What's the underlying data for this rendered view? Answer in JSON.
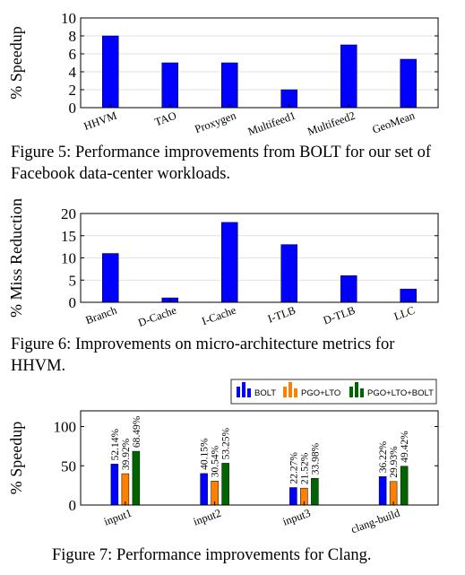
{
  "chart_data": [
    {
      "type": "bar",
      "ylabel": "% Speedup",
      "ylim": [
        0,
        10
      ],
      "yticks": [
        0,
        2,
        4,
        6,
        8,
        10
      ],
      "categories": [
        "HHVM",
        "TAO",
        "Proxygen",
        "Multifeed1",
        "Multifeed2",
        "GeoMean"
      ],
      "values": [
        8,
        5,
        5,
        2,
        7,
        5.4
      ],
      "color": "#0000ff",
      "grid": "horizontal",
      "caption": "Figure 5: Performance improvements from BOLT for our set of Facebook data-center workloads."
    },
    {
      "type": "bar",
      "ylabel": "% Miss Reduction",
      "ylim": [
        0,
        20
      ],
      "yticks": [
        0,
        5,
        10,
        15,
        20
      ],
      "categories": [
        "Branch",
        "D-Cache",
        "I-Cache",
        "I-TLB",
        "D-TLB",
        "LLC"
      ],
      "values": [
        11,
        1,
        18,
        13,
        6,
        3
      ],
      "color": "#0000ff",
      "grid": "horizontal",
      "caption": "Figure 6: Improvements on micro-architecture metrics for HHVM."
    },
    {
      "type": "bar",
      "ylabel": "% Speedup",
      "ylim": [
        0,
        120
      ],
      "yticks": [
        0,
        50,
        100
      ],
      "categories": [
        "input1",
        "input2",
        "input3",
        "clang-build"
      ],
      "series": [
        {
          "name": "BOLT",
          "values": [
            52.14,
            40.15,
            22.27,
            36.22
          ],
          "labels": [
            "52.14%",
            "40.15%",
            "22.27%",
            "36.22%"
          ],
          "color": "#0000ff"
        },
        {
          "name": "PGO+LTO",
          "values": [
            39.92,
            30.54,
            21.52,
            29.93
          ],
          "labels": [
            "39.92%",
            "30.54%",
            "21.52%",
            "29.93%"
          ],
          "color": "#ff8000"
        },
        {
          "name": "PGO+LTO+BOLT",
          "values": [
            68.49,
            53.25,
            33.98,
            49.42
          ],
          "labels": [
            "68.49%",
            "53.25%",
            "33.98%",
            "49.42%"
          ],
          "color": "#006400"
        }
      ],
      "legend": "top-right",
      "caption": "Figure 7: Performance improvements for Clang."
    }
  ]
}
